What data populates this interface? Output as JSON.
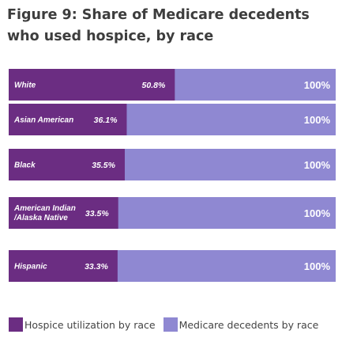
{
  "chart_data": {
    "type": "bar",
    "orientation": "horizontal",
    "title": "Figure 9: Share of Medicare decedents who used hospice, by race",
    "categories": [
      "White",
      "Asian American",
      "Black",
      "American Indian /Alaska Native",
      "Hispanic"
    ],
    "category_lines": [
      [
        "White"
      ],
      [
        "Asian American"
      ],
      [
        "Black"
      ],
      [
        "American Indian",
        "/Alaska Native"
      ],
      [
        "Hispanic"
      ]
    ],
    "series": [
      {
        "name": "Hospice utilization by race",
        "values": [
          50.8,
          36.1,
          35.5,
          33.5,
          33.3
        ],
        "labels": [
          "50.8%",
          "36.1%",
          "35.5%",
          "33.5%",
          "33.3%"
        ],
        "color": "#6b2d82"
      },
      {
        "name": "Medicare decedents by race",
        "values": [
          100,
          100,
          100,
          100,
          100
        ],
        "labels": [
          "100%",
          "100%",
          "100%",
          "100%",
          "100%"
        ],
        "color": "#8f88d2"
      }
    ],
    "xlim": [
      0,
      100
    ],
    "grid": false,
    "legend_position": "bottom-left",
    "background_color": "#ffffff"
  }
}
